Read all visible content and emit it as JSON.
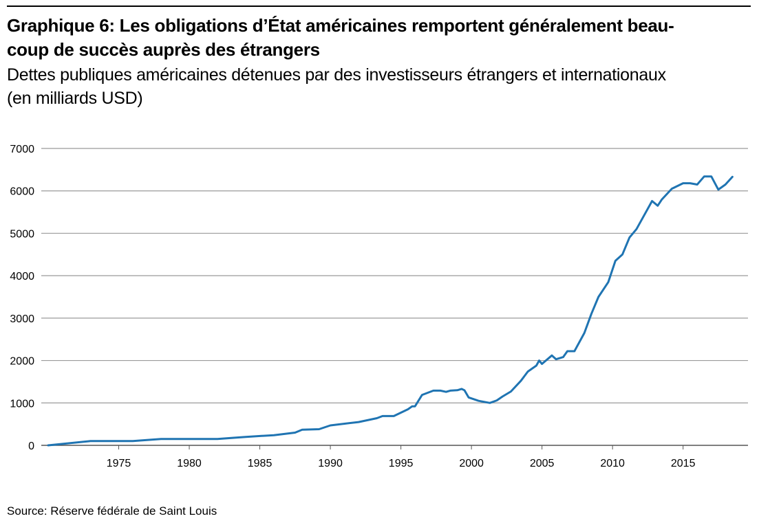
{
  "title": "Graphique 6: Les obligations d’État américaines remportent généralement beau-\ncoup de succès auprès des étrangers",
  "subtitle": "Dettes publiques américaines détenues par des investisseurs étrangers et internationaux\n(en milliards USD)",
  "source": "Source: Réserve fédérale de Saint Louis",
  "colors": {
    "line": "#1f74b2",
    "grid": "#9a9a9a",
    "axis": "#555555"
  },
  "chart_data": {
    "type": "line",
    "title": "Graphique 6: Les obligations d’État américaines remportent généralement beaucoup de succès auprès des étrangers",
    "subtitle": "Dettes publiques américaines détenues par des investisseurs étrangers et internationaux (en milliards USD)",
    "xlabel": "",
    "ylabel": "",
    "xlim": [
      1970,
      2019
    ],
    "ylim": [
      0,
      7000
    ],
    "grid": true,
    "legend": "none",
    "x_ticks": [
      1975,
      1980,
      1985,
      1990,
      1995,
      2000,
      2005,
      2010,
      2015
    ],
    "y_ticks": [
      0,
      1000,
      2000,
      3000,
      4000,
      5000,
      6000,
      7000
    ],
    "series": [
      {
        "x": [
          1970.0,
          1973.0,
          1976.0,
          1978.0,
          1982.0,
          1984.0,
          1986.0,
          1987.5,
          1988.0,
          1989.2,
          1990.0,
          1992.0,
          1993.3,
          1993.7,
          1994.5,
          1995.5,
          1995.8,
          1996.0,
          1996.5,
          1997.3,
          1997.8,
          1998.2,
          1998.5,
          1999.0,
          1999.3,
          1999.5,
          1999.8,
          2000.5,
          2001.3,
          2001.8,
          2002.2,
          2002.8,
          2003.5,
          2004.0,
          2004.6,
          2004.8,
          2005.0,
          2005.7,
          2006.0,
          2006.5,
          2006.8,
          2007.3,
          2008.0,
          2008.5,
          2009.0,
          2009.7,
          2010.2,
          2010.7,
          2011.2,
          2011.7,
          2012.2,
          2012.8,
          2013.2,
          2013.5,
          2014.2,
          2015.0,
          2015.5,
          2016.0,
          2016.5,
          2017.0,
          2017.5,
          2018.0,
          2018.5
        ],
        "y": [
          0,
          100,
          100,
          150,
          150,
          200,
          240,
          300,
          370,
          380,
          470,
          550,
          640,
          690,
          690,
          850,
          920,
          920,
          1190,
          1290,
          1290,
          1260,
          1290,
          1300,
          1330,
          1300,
          1130,
          1050,
          1000,
          1060,
          1150,
          1270,
          1520,
          1740,
          1880,
          2000,
          1920,
          2120,
          2030,
          2080,
          2220,
          2220,
          2650,
          3100,
          3500,
          3850,
          4350,
          4500,
          4900,
          5100,
          5400,
          5760,
          5650,
          5800,
          6050,
          6180,
          6180,
          6150,
          6340,
          6340,
          6030,
          6150,
          6330
        ]
      }
    ],
    "source": "Source: Réserve fédérale de Saint Louis"
  }
}
